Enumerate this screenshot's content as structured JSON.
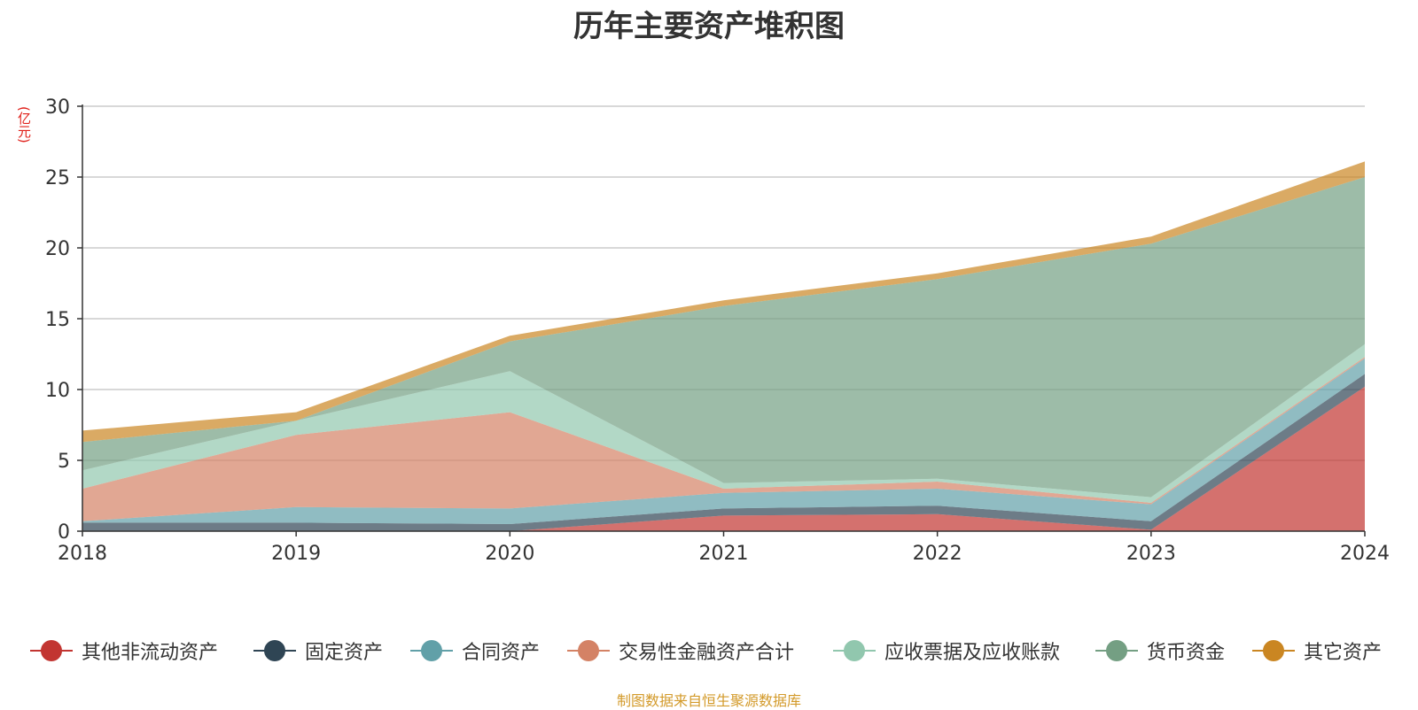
{
  "title": "历年主要资产堆积图",
  "y_unit": "(亿元)",
  "source": "制图数据来自恒生聚源数据库",
  "chart_data": {
    "type": "area",
    "stacked": true,
    "x": [
      "2018",
      "2019",
      "2020",
      "2021",
      "2022",
      "2023",
      "2024"
    ],
    "ylim": [
      0,
      30
    ],
    "yticks": [
      "0",
      "5",
      "10",
      "15",
      "20",
      "25",
      "30"
    ],
    "grid": true,
    "legend_position": "bottom",
    "series": [
      {
        "name": "其他非流动资产",
        "color": "#c23531",
        "values": [
          0.0,
          0.0,
          0.0,
          1.1,
          1.2,
          0.1,
          10.2
        ]
      },
      {
        "name": "固定资产",
        "color": "#2f4554",
        "values": [
          0.6,
          0.6,
          0.5,
          0.5,
          0.6,
          0.6,
          0.9
        ]
      },
      {
        "name": "合同资产",
        "color": "#61a0a8",
        "values": [
          0.1,
          1.1,
          1.1,
          1.1,
          1.2,
          1.2,
          1.1
        ]
      },
      {
        "name": "交易性金融资产合计",
        "color": "#d48265",
        "values": [
          2.3,
          5.1,
          6.8,
          0.3,
          0.5,
          0.1,
          0.1
        ]
      },
      {
        "name": "应收票据及应收账款",
        "color": "#91c7ae",
        "values": [
          1.3,
          1.0,
          2.9,
          0.4,
          0.2,
          0.4,
          0.9
        ]
      },
      {
        "name": "货币资金",
        "color": "#749f83",
        "values": [
          2.0,
          0.0,
          2.1,
          12.5,
          14.1,
          17.9,
          11.8
        ]
      },
      {
        "name": "其它资产",
        "color": "#ca8622",
        "values": [
          0.8,
          0.6,
          0.4,
          0.4,
          0.4,
          0.5,
          1.1
        ]
      }
    ]
  }
}
